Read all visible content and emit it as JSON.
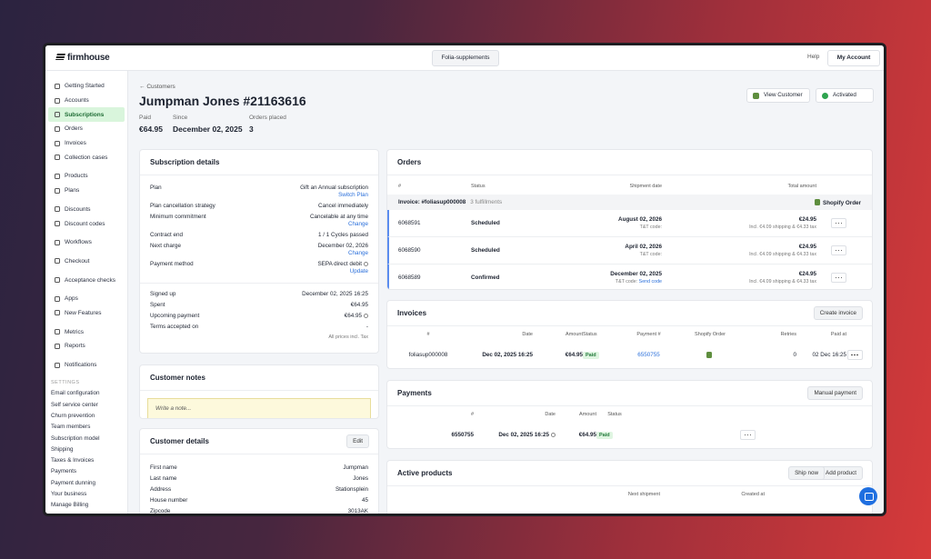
{
  "brand": "firmhouse",
  "topbar": {
    "project": "Folia-supplements",
    "help": "Help",
    "account": "My Account"
  },
  "sidebar": {
    "groups": [
      [
        "Getting Started",
        "Accounts",
        "Subscriptions",
        "Orders",
        "Invoices",
        "Collection cases"
      ],
      [
        "Products",
        "Plans"
      ],
      [
        "Discounts",
        "Discount codes"
      ],
      [
        "Workflows"
      ],
      [
        "Checkout"
      ],
      [
        "Acceptance checks"
      ],
      [
        "Apps",
        "New Features"
      ],
      [
        "Metrics",
        "Reports"
      ],
      [
        "Notifications"
      ]
    ],
    "active": {
      "group": 0,
      "index": 2
    },
    "settings_label": "SETTINGS",
    "settings": [
      "Email configuration",
      "Self service center",
      "Churn prevention",
      "Team members",
      "Subscription model",
      "Shipping",
      "Taxes & Invoices",
      "Payments",
      "Payment dunning",
      "Your business",
      "Manage Billing"
    ]
  },
  "header": {
    "back": "Customers",
    "title": "Jumpman Jones #21163616",
    "stats": [
      {
        "label": "Paid",
        "value": "€64.95"
      },
      {
        "label": "Since",
        "value": "December 02, 2025"
      },
      {
        "label": "Orders placed",
        "value": "3"
      }
    ],
    "view_customer": "View Customer",
    "status": "Activated"
  },
  "subscription": {
    "title": "Subscription details",
    "rows": [
      {
        "label": "Plan",
        "value": "Gift an Annual subscription",
        "link": "Switch Plan"
      },
      {
        "label": "Plan cancellation strategy",
        "value": "Cancel immediately"
      },
      {
        "label": "Minimum commitment",
        "value": "Cancelable at any time",
        "link": "Change"
      },
      {
        "label": "Contract end",
        "value": "1 / 1 Cycles passed"
      },
      {
        "label": "Next charge",
        "value": "December 02, 2026",
        "link": "Change"
      },
      {
        "label": "Payment method",
        "value": "SEPA direct debit",
        "link": "Update",
        "icon": true
      }
    ],
    "rows2": [
      {
        "label": "Signed up",
        "value": "December 02, 2025 16:25"
      },
      {
        "label": "Spent",
        "value": "€64.95"
      },
      {
        "label": "Upcoming payment",
        "value": "€64.95",
        "icon": true
      },
      {
        "label": "Terms accepted on",
        "value": "-"
      }
    ],
    "note": "All prices incl. Tax"
  },
  "notes": {
    "title": "Customer notes",
    "placeholder": "Write a note..."
  },
  "customer": {
    "title": "Customer details",
    "edit": "Edit",
    "rows": [
      {
        "label": "First name",
        "value": "Jumpman"
      },
      {
        "label": "Last name",
        "value": "Jones"
      },
      {
        "label": "Address",
        "value": "Stationsplein"
      },
      {
        "label": "House number",
        "value": "45"
      },
      {
        "label": "Zipcode",
        "value": "3013AK"
      }
    ]
  },
  "orders": {
    "title": "Orders",
    "columns": [
      "#",
      "Status",
      "Shipment date",
      "Total amount"
    ],
    "invoice": "Invoice: #foliasup000008",
    "fulfillments": "3 fulfillments",
    "shopify": "Shopify Order",
    "rows": [
      {
        "id": "6068591",
        "status": "Scheduled",
        "date": "August 02, 2026",
        "tt": "T&T code:",
        "amount": "€24.95",
        "fees": "Incl. €4.09 shipping & €4.33 tax"
      },
      {
        "id": "6068590",
        "status": "Scheduled",
        "date": "April 02, 2026",
        "tt": "T&T code:",
        "amount": "€24.95",
        "fees": "Incl. €4.09 shipping & €4.33 tax"
      },
      {
        "id": "6068589",
        "status": "Confirmed",
        "date": "December 02, 2025",
        "tt": "T&T code:",
        "tt_link": "Send code",
        "amount": "€24.95",
        "fees": "Incl. €4.09 shipping & €4.33 tax"
      }
    ]
  },
  "invoices": {
    "title": "Invoices",
    "button": "Create invoice",
    "columns": [
      "#",
      "Date",
      "Amount",
      "Status",
      "Payment #",
      "Shopify Order",
      "Retries",
      "Paid at"
    ],
    "rows": [
      {
        "number": "foliasup000008",
        "date": "Dec 02, 2025 16:25",
        "amount": "€64.95",
        "status": "Paid",
        "payment": "6550755",
        "retries": "0",
        "paid_at": "02 Dec 16:25"
      }
    ]
  },
  "payments": {
    "title": "Payments",
    "button": "Manual payment",
    "columns": [
      "#",
      "Date",
      "Amount",
      "Status"
    ],
    "rows": [
      {
        "number": "6550755",
        "date": "Dec 02, 2025 16:25",
        "amount": "€64.95",
        "status": "Paid"
      }
    ]
  },
  "products": {
    "title": "Active products",
    "buttons": [
      "Ship now",
      "Add product"
    ],
    "columns": [
      "Next shipment",
      "Created at"
    ]
  }
}
